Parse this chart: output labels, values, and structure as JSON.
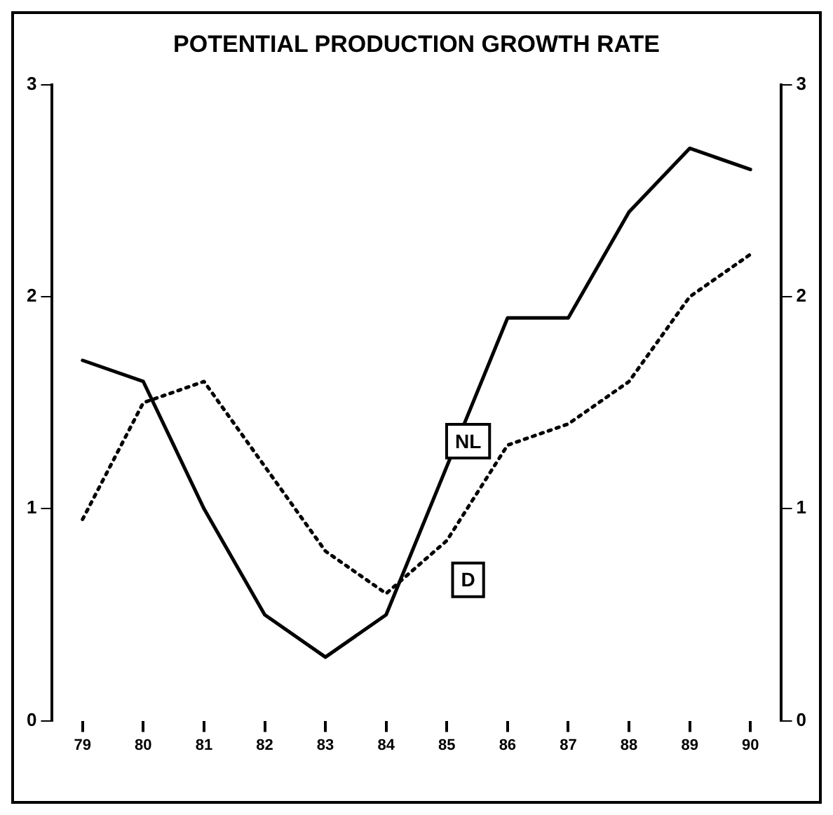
{
  "chart_data": {
    "type": "line",
    "title": "POTENTIAL PRODUCTION GROWTH RATE",
    "categories": [
      "79",
      "80",
      "81",
      "82",
      "83",
      "84",
      "85",
      "86",
      "87",
      "88",
      "89",
      "90"
    ],
    "series": [
      {
        "name": "NL",
        "color": "#000000",
        "line_style": "solid",
        "values": [
          1.7,
          1.6,
          1.0,
          0.5,
          0.3,
          0.5,
          1.2,
          1.9,
          1.9,
          2.4,
          2.7,
          2.6
        ]
      },
      {
        "name": "D",
        "color": "#000000",
        "line_style": "dotted",
        "values": [
          0.95,
          1.5,
          1.6,
          1.2,
          0.8,
          0.6,
          0.85,
          1.3,
          1.4,
          1.6,
          2.0,
          2.2
        ]
      }
    ],
    "ylim": [
      0,
      3
    ],
    "yticks": [
      0,
      1,
      2,
      3
    ],
    "y2lim": [
      0,
      3
    ],
    "y2ticks": [
      0,
      1,
      2,
      3
    ],
    "grid": false,
    "legend": false,
    "marker": "none"
  }
}
